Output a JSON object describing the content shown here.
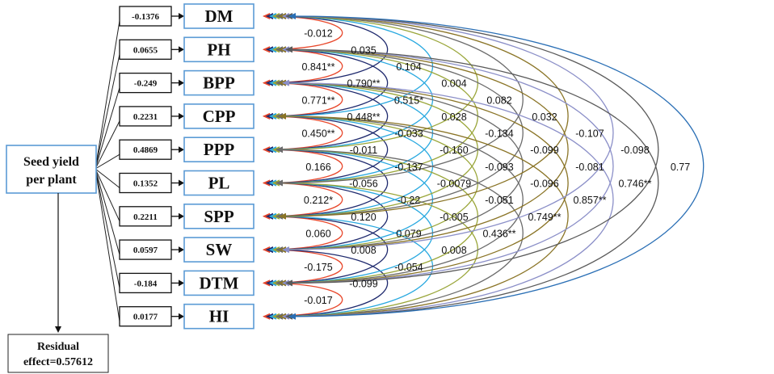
{
  "seed_yield": {
    "line1": "Seed yield",
    "line2": "per plant"
  },
  "residual": {
    "line1": "Residual",
    "line2": "effect=0.57612"
  },
  "variables": [
    {
      "name": "DM",
      "direct": "-0.1376"
    },
    {
      "name": "PH",
      "direct": "0.0655"
    },
    {
      "name": "BPP",
      "direct": "-0.249"
    },
    {
      "name": "CPP",
      "direct": "0.2231"
    },
    {
      "name": "PPP",
      "direct": "0.4869"
    },
    {
      "name": "PL",
      "direct": "0.1352"
    },
    {
      "name": "SPP",
      "direct": "0.2211"
    },
    {
      "name": "SW",
      "direct": "0.0597"
    },
    {
      "name": "DTM",
      "direct": "-0.184"
    },
    {
      "name": "HI",
      "direct": "0.0177"
    }
  ],
  "correlations": {
    "lag1": [
      "-0.012",
      "0.841**",
      "0.771**",
      "0.450**",
      "0.166",
      "0.212*",
      "0.060",
      "-0.175",
      "-0.017"
    ],
    "lag2": [
      "0.035",
      "0.790**",
      "0.448**",
      "-0.011",
      "-0.056",
      "0.120",
      "0.008",
      "-0.099"
    ],
    "lag3": [
      "0.104",
      "0.515*",
      "-0.033",
      "-0.137",
      "-0.22",
      "0.079",
      "-0.054"
    ],
    "lag4": [
      "0.004",
      "0.028",
      "-0.160",
      "-0.0079",
      "-0.005",
      "0.008"
    ],
    "lag5": [
      "0.082",
      "-0.134",
      "-0.093",
      "-0.051",
      "0.436**"
    ],
    "lag6": [
      "0.032",
      "-0.099",
      "-0.096",
      "0.749**"
    ],
    "lag7": [
      "-0.107",
      "-0.081",
      "0.857**"
    ],
    "lag8": [
      "-0.098",
      "0.746**"
    ],
    "lag9": [
      "0.77"
    ]
  },
  "arc_colors": [
    "#e8482c",
    "#1f2a6e",
    "#29a9e0",
    "#9aa63a",
    "#6b6b6b",
    "#8a7426",
    "#8b8fc8",
    "#5a5a5a",
    "#2a6fb5"
  ]
}
